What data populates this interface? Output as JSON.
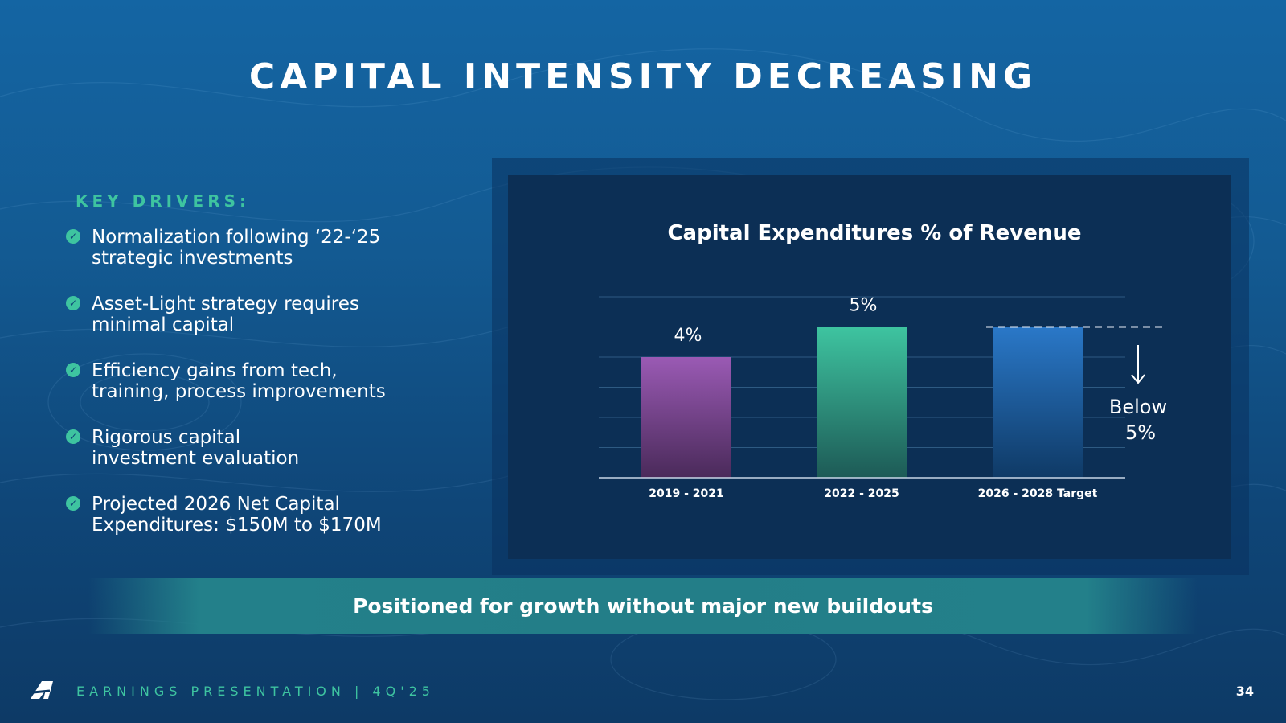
{
  "slide": {
    "title": "CAPITAL INTENSITY DECREASING",
    "page_number": "34"
  },
  "drivers": {
    "heading": "KEY DRIVERS:",
    "items": [
      {
        "line1": "Normalization following ‘22-‘25",
        "line2": "strategic investments"
      },
      {
        "line1": "Asset-Light strategy requires",
        "line2": "minimal capital"
      },
      {
        "line1": "Efficiency gains from tech,",
        "line2": "training, process improvements"
      },
      {
        "line1": "Rigorous capital",
        "line2": "investment evaluation"
      },
      {
        "line1": "Projected 2026 Net Capital",
        "line2": "Expenditures: $150M to $170M"
      }
    ]
  },
  "banner": {
    "text": "Positioned for growth without major new buildouts"
  },
  "footer": {
    "text": "EARNINGS PRESENTATION  |  4Q'25"
  },
  "colors": {
    "accent": "#3ec4a0",
    "bar_2019": "#9a5ab4",
    "bar_2022": "#3ec4a0",
    "bar_2026": "#2a78c8"
  },
  "chart_data": {
    "type": "bar",
    "title": "Capital Expenditures % of Revenue",
    "categories": [
      "2019 - 2021",
      "2022 - 2025",
      "2026 - 2028 Target"
    ],
    "values": [
      4,
      5,
      5
    ],
    "data_labels": [
      "4%",
      "5%",
      ""
    ],
    "target_annotation": {
      "line1": "Below",
      "line2": "5%"
    },
    "ylim": [
      0,
      6
    ],
    "grid": true,
    "xlabel": "",
    "ylabel": ""
  }
}
